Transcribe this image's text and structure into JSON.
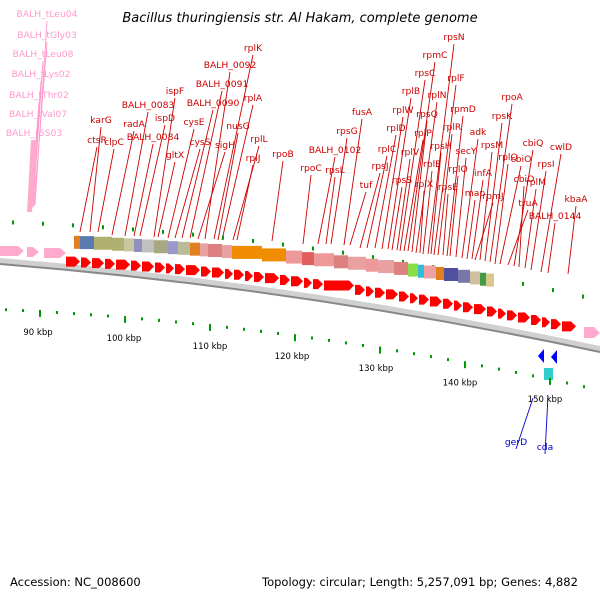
{
  "title": "Bacillus thuringiensis str. Al Hakam, complete genome",
  "footer": {
    "accession": "Accession: NC_008600",
    "stats": "Topology: circular; Length: 5,257,091 bp; Genes: 4,882"
  },
  "colors": {
    "gene_label": "#cc0000",
    "trna_label": "#ff99cc",
    "reverse_label": "#0000cc",
    "forward_arrow": "#ff0000",
    "trna_arrow": "#ffaacc",
    "reverse_arrow": "#0000ff",
    "tick": "#009900",
    "backbone": "#999999"
  },
  "scale": {
    "unit": "kbp",
    "ticks": [
      "90 kbp",
      "100 kbp",
      "110 kbp",
      "120 kbp",
      "130 kbp",
      "140 kbp",
      "150 kbp"
    ]
  },
  "trna_labels": [
    "BALH_tLeu04",
    "BALH_tGly03",
    "BALH_tLeu08",
    "BALH_tLys02",
    "BALH_tThr02",
    "BALH_tVal07",
    "BALH_r5S03"
  ],
  "gene_labels": [
    "ctsR",
    "karG",
    "clpC",
    "radA",
    "BALH_0083",
    "BALH_0084",
    "ispD",
    "ispF",
    "gltX",
    "cysE",
    "cysS",
    "BALH_0090",
    "BALH_0091",
    "sigH",
    "BALH_0092",
    "rplK",
    "nusG",
    "rplA",
    "rplL",
    "rplJ",
    "rpoB",
    "rpoC",
    "BALH_0102",
    "rpsL",
    "rpsG",
    "fusA",
    "tuf",
    "rpsJ",
    "rplC",
    "rplD",
    "rplW",
    "rplB",
    "rpsS",
    "rplV",
    "rpsC",
    "rplP",
    "rpmC",
    "rpsQ",
    "rplN",
    "rplX",
    "rplE",
    "rpsN",
    "rpsH",
    "rplF",
    "rplR",
    "rpsE",
    "rpmD",
    "rplO",
    "secY",
    "adk",
    "map",
    "infA",
    "rpmJ",
    "rpsM",
    "rpsK",
    "rpoA",
    "rplQ",
    "cbiO",
    "truA",
    "cbiQ",
    "cbiO",
    "rplM",
    "rpsI",
    "cwlD",
    "BALH_0144",
    "kbaA"
  ],
  "reverse_labels": [
    "gerD",
    "cda"
  ]
}
